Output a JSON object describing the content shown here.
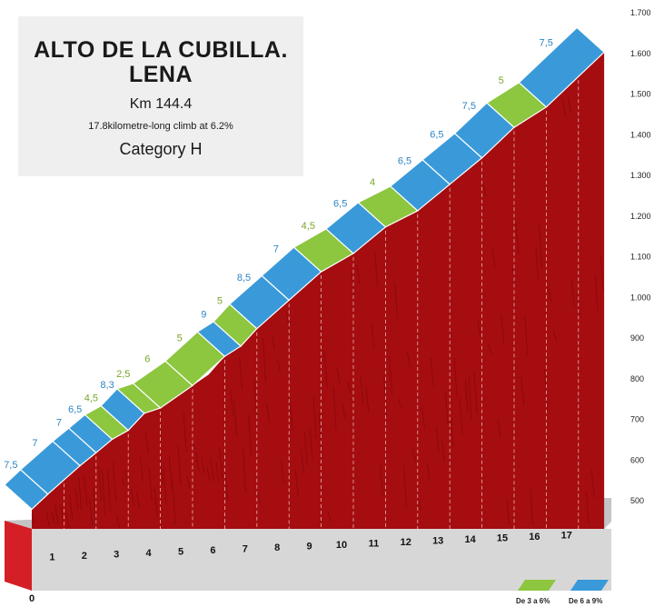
{
  "info": {
    "title_line1": "ALTO DE LA CUBILLA.",
    "title_line2": "LENA",
    "km": "Km 144.4",
    "description": "17.8kilometre-long climb at 6.2%",
    "category": "Category H"
  },
  "colors": {
    "green": "#8dc63f",
    "blue": "#3a9ad9",
    "profile_red": "#a50d10",
    "base_red": "#d41f26",
    "base_grey": "#c4c4c4",
    "label_green": "#7aa52a",
    "label_blue": "#2c86c4"
  },
  "legend": [
    {
      "label": "De 3 a 6%",
      "color_key": "green"
    },
    {
      "label": "De 6 a 9%",
      "color_key": "blue"
    }
  ],
  "chart_data": {
    "type": "area",
    "title": "",
    "xlabel": "",
    "ylabel": "",
    "x_ticks": [
      "0",
      "1",
      "2",
      "3",
      "4",
      "5",
      "6",
      "7",
      "8",
      "9",
      "10",
      "11",
      "12",
      "13",
      "14",
      "15",
      "16",
      "17"
    ],
    "y_ticks": [
      "500",
      "600",
      "700",
      "800",
      "900",
      "1.000",
      "1.100",
      "1.200",
      "1.300",
      "1.400",
      "1.500",
      "1.600",
      "1.700"
    ],
    "ylim": [
      500,
      1700
    ],
    "xlim": [
      0,
      17.8
    ],
    "points": [
      {
        "km": 0,
        "alt": 479
      },
      {
        "km": 0.5,
        "alt": 516
      },
      {
        "km": 1,
        "alt": 551
      },
      {
        "km": 1.5,
        "alt": 586
      },
      {
        "km": 2,
        "alt": 618
      },
      {
        "km": 2.5,
        "alt": 651
      },
      {
        "km": 3,
        "alt": 673
      },
      {
        "km": 3.5,
        "alt": 715
      },
      {
        "km": 4,
        "alt": 728
      },
      {
        "km": 4.5,
        "alt": 758
      },
      {
        "km": 5,
        "alt": 783
      },
      {
        "km": 5.5,
        "alt": 810
      },
      {
        "km": 6,
        "alt": 855
      },
      {
        "km": 6.5,
        "alt": 880
      },
      {
        "km": 7,
        "alt": 923
      },
      {
        "km": 7.5,
        "alt": 958
      },
      {
        "km": 8,
        "alt": 993
      },
      {
        "km": 9,
        "alt": 1063
      },
      {
        "km": 10,
        "alt": 1108
      },
      {
        "km": 11,
        "alt": 1173
      },
      {
        "km": 12,
        "alt": 1213
      },
      {
        "km": 13,
        "alt": 1278
      },
      {
        "km": 14,
        "alt": 1343
      },
      {
        "km": 15,
        "alt": 1418
      },
      {
        "km": 16,
        "alt": 1468
      },
      {
        "km": 17,
        "alt": 1543
      },
      {
        "km": 17.8,
        "alt": 1603
      }
    ],
    "segments": [
      {
        "from": 0,
        "to": 0.5,
        "gradient": "7,5",
        "class": "blue"
      },
      {
        "from": 0.5,
        "to": 1.5,
        "gradient": "7",
        "class": "blue"
      },
      {
        "from": 1.5,
        "to": 2,
        "gradient": "7",
        "class": "blue"
      },
      {
        "from": 2,
        "to": 2.5,
        "gradient": "6,5",
        "class": "blue"
      },
      {
        "from": 2.5,
        "to": 3,
        "gradient": "4,5",
        "class": "green"
      },
      {
        "from": 3,
        "to": 3.5,
        "gradient": "8,3",
        "class": "blue"
      },
      {
        "from": 3.5,
        "to": 4,
        "gradient": "2,5",
        "class": "green"
      },
      {
        "from": 4,
        "to": 5,
        "gradient": "6",
        "class": "green"
      },
      {
        "from": 5,
        "to": 6,
        "gradient": "5",
        "class": "green"
      },
      {
        "from": 6,
        "to": 6.5,
        "gradient": "9",
        "class": "blue"
      },
      {
        "from": 6.5,
        "to": 7,
        "gradient": "5",
        "class": "green"
      },
      {
        "from": 7,
        "to": 8,
        "gradient": "8,5",
        "class": "blue"
      },
      {
        "from": 8,
        "to": 9,
        "gradient": "7",
        "class": "blue"
      },
      {
        "from": 9,
        "to": 10,
        "gradient": "4,5",
        "class": "green"
      },
      {
        "from": 10,
        "to": 11,
        "gradient": "6,5",
        "class": "blue"
      },
      {
        "from": 11,
        "to": 12,
        "gradient": "4",
        "class": "green"
      },
      {
        "from": 12,
        "to": 13,
        "gradient": "6,5",
        "class": "blue"
      },
      {
        "from": 13,
        "to": 14,
        "gradient": "6,5",
        "class": "blue"
      },
      {
        "from": 14,
        "to": 15,
        "gradient": "7,5",
        "class": "blue"
      },
      {
        "from": 15,
        "to": 16,
        "gradient": "5",
        "class": "green"
      },
      {
        "from": 16,
        "to": 17.8,
        "gradient": "7,5",
        "class": "blue"
      }
    ]
  }
}
